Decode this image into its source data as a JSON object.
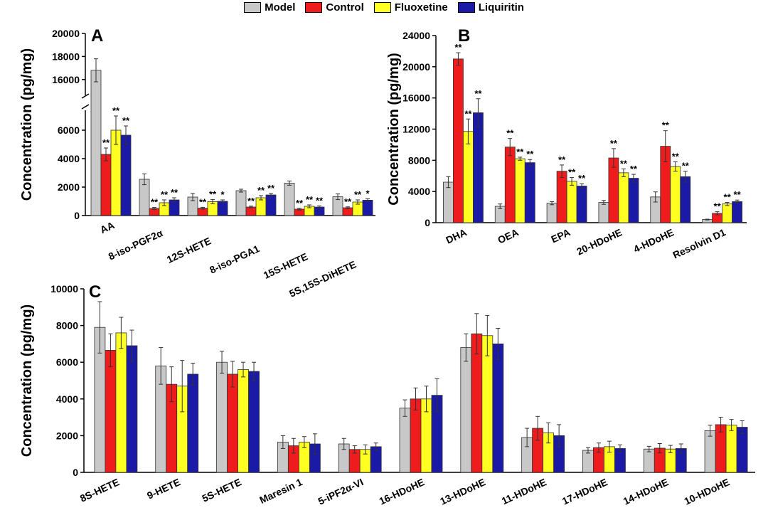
{
  "legend": [
    "Model",
    "Control",
    "Fluoxetine",
    "Liquiritin"
  ],
  "colors": {
    "Model": "#c8c8c8",
    "Control": "#ee1c1c",
    "Fluoxetine": "#ffff22",
    "Liquiritin": "#1a1aa6"
  },
  "chart_data": [
    {
      "panel": "A",
      "type": "bar",
      "ylabel": "Concentration (pg/mg)",
      "axis_break": true,
      "lower_range": [
        0,
        7000
      ],
      "upper_range": [
        15000,
        20000
      ],
      "lower_ticks": [
        0,
        2000,
        4000,
        6000
      ],
      "upper_ticks": [
        16000,
        18000,
        20000
      ],
      "categories": [
        "AA",
        "8-iso-PGF2α",
        "12S-HETE",
        "8-iso-PGA1",
        "15S-HETE",
        "5S,15S-DiHETE"
      ],
      "series": [
        {
          "name": "Model",
          "values": [
            16800,
            2550,
            1300,
            1750,
            2280,
            1320
          ],
          "errors": [
            1000,
            380,
            250,
            100,
            150,
            200
          ],
          "sig": [
            "",
            "",
            "",
            "",
            "",
            ""
          ]
        },
        {
          "name": "Control",
          "values": [
            4300,
            500,
            520,
            600,
            450,
            550
          ],
          "errors": [
            450,
            70,
            60,
            60,
            60,
            60
          ],
          "sig": [
            "**",
            "**",
            "**",
            "**",
            "**",
            "**"
          ]
        },
        {
          "name": "Fluoxetine",
          "values": [
            6000,
            900,
            980,
            1250,
            650,
            950
          ],
          "errors": [
            1000,
            200,
            150,
            150,
            100,
            150
          ],
          "sig": [
            "**",
            "**",
            "**",
            "**",
            "**",
            "**"
          ]
        },
        {
          "name": "Liquiritin",
          "values": [
            5650,
            1100,
            1000,
            1450,
            600,
            1080
          ],
          "errors": [
            650,
            150,
            100,
            100,
            80,
            100
          ],
          "sig": [
            "**",
            "**",
            "*",
            "**",
            "**",
            "*"
          ]
        }
      ]
    },
    {
      "panel": "B",
      "type": "bar",
      "ylabel": "Concentration (pg/mg)",
      "ylim": [
        0,
        24000
      ],
      "ticks": [
        0,
        4000,
        8000,
        12000,
        16000,
        20000,
        24000
      ],
      "categories": [
        "DHA",
        "OEA",
        "EPA",
        "20-HDoHE",
        "4-HDoHE",
        "Resolvin D1"
      ],
      "series": [
        {
          "name": "Model",
          "values": [
            5200,
            2100,
            2500,
            2600,
            3300,
            400
          ],
          "errors": [
            700,
            300,
            200,
            250,
            650,
            50
          ],
          "sig": [
            "",
            "",
            "",
            "",
            "",
            ""
          ]
        },
        {
          "name": "Control",
          "values": [
            21000,
            9700,
            6600,
            8300,
            9800,
            1200
          ],
          "errors": [
            800,
            1100,
            800,
            1200,
            2000,
            200
          ],
          "sig": [
            "**",
            "**",
            "**",
            "**",
            "**",
            "**"
          ]
        },
        {
          "name": "Fluoxetine",
          "values": [
            11700,
            8200,
            5300,
            6400,
            7200,
            2400
          ],
          "errors": [
            1600,
            200,
            500,
            500,
            600,
            200
          ],
          "sig": [
            "**",
            "**",
            "**",
            "**",
            "**",
            "**"
          ]
        },
        {
          "name": "Liquiritin",
          "values": [
            14100,
            7700,
            4700,
            5700,
            5900,
            2700
          ],
          "errors": [
            1800,
            400,
            300,
            500,
            700,
            200
          ],
          "sig": [
            "**",
            "**",
            "**",
            "**",
            "**",
            "**"
          ]
        }
      ]
    },
    {
      "panel": "C",
      "type": "bar",
      "ylabel": "Concentration (pg/mg)",
      "ylim": [
        0,
        10000
      ],
      "ticks": [
        0,
        2000,
        4000,
        6000,
        8000,
        10000
      ],
      "categories": [
        "8S-HETE",
        "9-HETE",
        "5S-HETE",
        "Maresin 1",
        "5-iPF2α-VI",
        "16-HDoHE",
        "13-HDoHE",
        "11-HDoHE",
        "17-HDoHE",
        "14-HDoHE",
        "10-HDoHE"
      ],
      "series": [
        {
          "name": "Model",
          "values": [
            7900,
            5800,
            6000,
            1650,
            1550,
            3500,
            6800,
            1900,
            1200,
            1270,
            2270
          ],
          "errors": [
            1400,
            1000,
            600,
            350,
            300,
            450,
            750,
            500,
            150,
            150,
            300
          ],
          "sig": [
            "",
            "",
            "",
            "",
            "",
            "",
            "",
            "",
            "",
            "",
            ""
          ]
        },
        {
          "name": "Control",
          "values": [
            6650,
            4800,
            5350,
            1450,
            1250,
            4000,
            7550,
            2400,
            1350,
            1320,
            2600
          ],
          "errors": [
            900,
            950,
            700,
            400,
            200,
            600,
            1100,
            650,
            250,
            250,
            400
          ],
          "sig": [
            "",
            "",
            "",
            "",
            "",
            "",
            "",
            "",
            "",
            "",
            ""
          ]
        },
        {
          "name": "Fluoxetine",
          "values": [
            7600,
            4700,
            5600,
            1650,
            1250,
            4000,
            7450,
            2150,
            1400,
            1270,
            2580
          ],
          "errors": [
            850,
            1400,
            400,
            300,
            250,
            700,
            1100,
            550,
            300,
            200,
            300
          ],
          "sig": [
            "",
            "",
            "",
            "",
            "",
            "",
            "",
            "",
            "",
            "",
            ""
          ]
        },
        {
          "name": "Liquiritin",
          "values": [
            6900,
            5350,
            5500,
            1550,
            1400,
            4200,
            7000,
            2000,
            1300,
            1300,
            2460
          ],
          "errors": [
            850,
            600,
            500,
            550,
            200,
            900,
            850,
            600,
            200,
            250,
            350
          ],
          "sig": [
            "",
            "",
            "",
            "",
            "",
            "",
            "",
            "",
            "",
            "",
            ""
          ]
        }
      ]
    }
  ]
}
